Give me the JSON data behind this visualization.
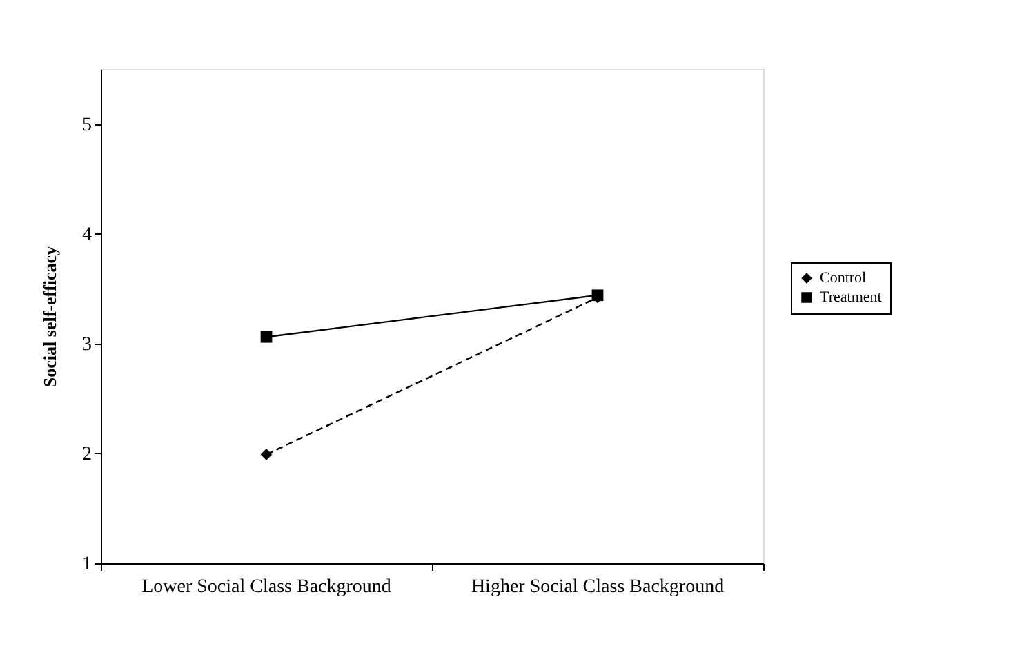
{
  "chart_data": {
    "type": "line",
    "ylabel": "Social self-efficacy",
    "categories": [
      "Lower Social Class Background",
      "Higher Social Class Background"
    ],
    "series": [
      {
        "name": "Control",
        "color": "#000000",
        "values": [
          1.99,
          3.42
        ],
        "marker": "diamond",
        "line_style": "dashed"
      },
      {
        "name": "Treatment",
        "color": "#000000",
        "values": [
          3.06,
          3.44
        ],
        "marker": "square",
        "line_style": "solid"
      }
    ],
    "ylim": [
      1,
      5.5
    ],
    "yticks": [
      1,
      2,
      3,
      4,
      5
    ],
    "grid": false,
    "legend": "right"
  }
}
